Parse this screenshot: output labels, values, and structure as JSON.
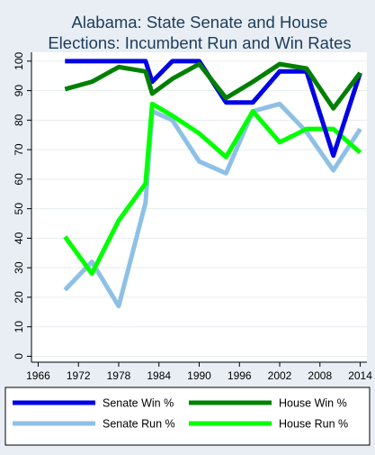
{
  "chart_data": {
    "type": "line",
    "title": "Alabama: State Senate and House Elections: Incumbent Run and Win Rates",
    "title_lines": [
      "Alabama: State Senate and House",
      "Elections: Incumbent Run and Win Rates"
    ],
    "xlabel": "",
    "ylabel": "",
    "x_ticks": [
      "1966",
      "1972",
      "1978",
      "1984",
      "1990",
      "1996",
      "2002",
      "2008",
      "2014"
    ],
    "y_ticks": [
      "0",
      "10",
      "20",
      "30",
      "40",
      "50",
      "60",
      "70",
      "80",
      "90",
      "100"
    ],
    "xlim": [
      1965,
      2015
    ],
    "ylim": [
      -2,
      103
    ],
    "grid": true,
    "legend_position": "bottom",
    "series": [
      {
        "name": "Senate Win %",
        "color": "#0000e6",
        "x": [
          1970,
          1974,
          1978,
          1982,
          1983,
          1986,
          1990,
          1994,
          1998,
          2002,
          2006,
          2010,
          2014
        ],
        "values": [
          100,
          100,
          100,
          100,
          93,
          100,
          100,
          86,
          86,
          96.5,
          96.5,
          68,
          96
        ]
      },
      {
        "name": "Senate Run %",
        "color": "#8ec0e6",
        "x": [
          1970,
          1974,
          1978,
          1982,
          1983,
          1986,
          1990,
          1994,
          1998,
          2002,
          2006,
          2010,
          2014
        ],
        "values": [
          22.5,
          32,
          17,
          52,
          83,
          80,
          66,
          62,
          83,
          85.5,
          76,
          63,
          77
        ]
      },
      {
        "name": "House Win %",
        "color": "#008000",
        "x": [
          1970,
          1974,
          1978,
          1982,
          1983,
          1986,
          1990,
          1994,
          1998,
          2002,
          2006,
          2010,
          2014
        ],
        "values": [
          90.5,
          93,
          98,
          96.5,
          89,
          94,
          99,
          87.5,
          93,
          99,
          97.5,
          84,
          96
        ]
      },
      {
        "name": "House Run %",
        "color": "#00ff00",
        "x": [
          1970,
          1974,
          1978,
          1982,
          1983,
          1986,
          1990,
          1994,
          1998,
          2002,
          2006,
          2010,
          2014
        ],
        "values": [
          40.5,
          28,
          46,
          58.5,
          85.5,
          81.5,
          75.5,
          67.5,
          83,
          72.5,
          77,
          77,
          69
        ]
      }
    ]
  }
}
